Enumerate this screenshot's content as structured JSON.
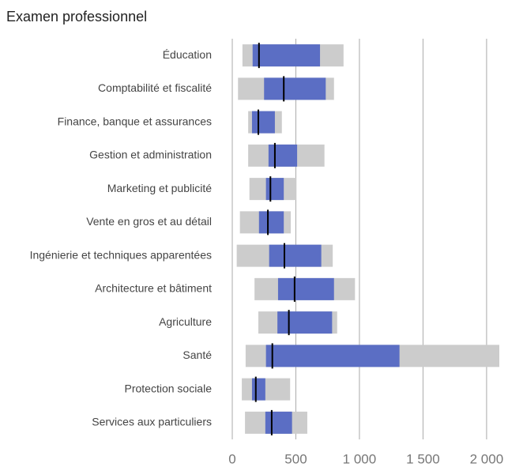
{
  "chart_data": {
    "type": "range-bar",
    "title": "Examen professionnel",
    "categories": [
      "Éducation",
      "Comptabilité et fiscalité",
      "Finance, banque et assurances",
      "Gestion et administration",
      "Marketing et publicité",
      "Vente en gros et au détail",
      "Ingénierie et techniques apparentées",
      "Architecture et bâtiment",
      "Agriculture",
      "Santé",
      "Protection sociale",
      "Services aux particuliers"
    ],
    "low": [
      80,
      45,
      125,
      125,
      135,
      60,
      35,
      175,
      205,
      105,
      75,
      100
    ],
    "q1": [
      160,
      250,
      155,
      285,
      265,
      210,
      290,
      360,
      355,
      265,
      155,
      260
    ],
    "median": [
      210,
      405,
      205,
      335,
      300,
      280,
      410,
      490,
      445,
      315,
      185,
      310
    ],
    "q3": [
      690,
      735,
      335,
      510,
      405,
      405,
      700,
      800,
      785,
      1315,
      260,
      470
    ],
    "high": [
      875,
      800,
      390,
      725,
      505,
      460,
      790,
      965,
      825,
      2100,
      455,
      590
    ],
    "range_color": "#cccccc",
    "iqr_color": "#5b6ec4",
    "median_color": "#000000",
    "xlim": [
      0,
      2100
    ],
    "xticks": [
      0,
      500,
      {
        "value": 1000,
        "label": "1 000"
      },
      {
        "value": 1500,
        "label": "1 500"
      },
      {
        "value": 2000,
        "label": "2 000"
      }
    ],
    "grid": true
  }
}
